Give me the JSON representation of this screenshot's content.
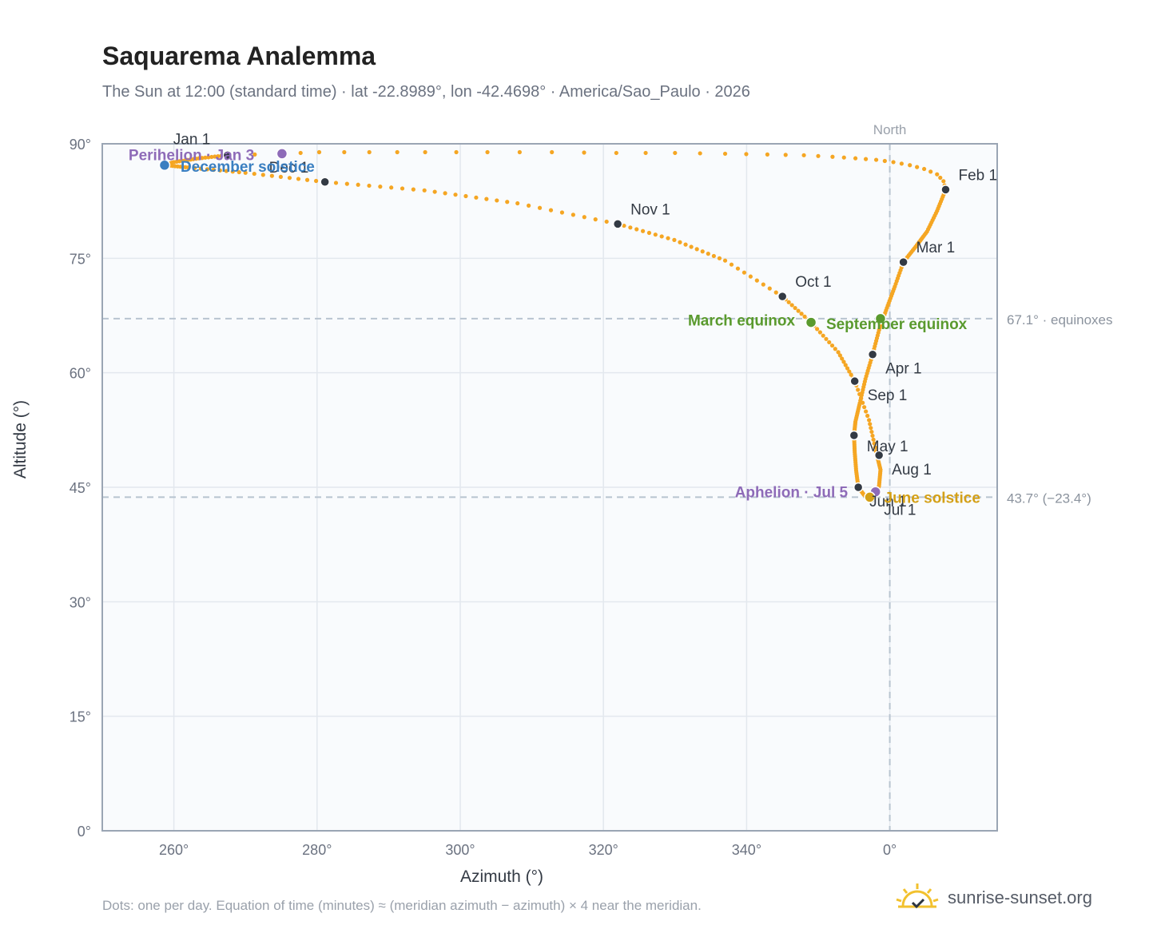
{
  "title": "Saquarema Analemma",
  "subtitle": "The Sun at 12:00 (standard time) · lat -22.8989°, lon -42.4698° · America/Sao_Paulo · 2026",
  "footer_note": "Dots: one per day. Equation of time (minutes) ≈ (meridian azimuth − azimuth) × 4 near the meridian.",
  "brand": {
    "name": "sunrise-sunset.org",
    "logo_icon": "sun-check-logo-icon"
  },
  "colors": {
    "path": "#f5a623",
    "month_dot": "#333a44",
    "perihelion": "#8e6bb8",
    "solstice_dec": "#3a7fc1",
    "equinox": "#5a9a2e",
    "solstice_jun": "#d4a017",
    "reference_line": "#b8c4d0",
    "grid": "#e3e8ee",
    "plot_bg": "#f9fbfd"
  },
  "chart_data": {
    "type": "scatter",
    "xlabel": "Azimuth (°)",
    "ylabel": "Altitude (°)",
    "x_ticks": [
      "260°",
      "280°",
      "300°",
      "320°",
      "340°",
      "0°"
    ],
    "x_tick_values": [
      260,
      280,
      300,
      320,
      340,
      360
    ],
    "y_ticks": [
      "0°",
      "15°",
      "30°",
      "45°",
      "60°",
      "75°",
      "90°"
    ],
    "y_tick_values": [
      0,
      15,
      30,
      45,
      60,
      75,
      90
    ],
    "xlim": [
      250.0,
      375.0
    ],
    "ylim": [
      0,
      90
    ],
    "grid": true,
    "north": {
      "label": "North",
      "x": 360
    },
    "reference_lines": [
      {
        "y": 67.1,
        "label": "67.1° · equinoxes"
      },
      {
        "y": 43.7,
        "label": "43.7° (−23.4°)"
      }
    ],
    "month_points": [
      {
        "label": "Jan 1",
        "x": 267.5,
        "y": 88.5
      },
      {
        "label": "Feb 1",
        "x": 367.8,
        "y": 84.0
      },
      {
        "label": "Mar 1",
        "x": 361.9,
        "y": 74.5
      },
      {
        "label": "Apr 1",
        "x": 357.6,
        "y": 62.4
      },
      {
        "label": "May 1",
        "x": 355.0,
        "y": 51.8
      },
      {
        "label": "Jun 1",
        "x": 355.6,
        "y": 45.0
      },
      {
        "label": "Jul 1",
        "x": 357.4,
        "y": 43.5
      },
      {
        "label": "Aug 1",
        "x": 358.5,
        "y": 49.2
      },
      {
        "label": "Sep 1",
        "x": 355.1,
        "y": 58.9
      },
      {
        "label": "Oct 1",
        "x": 345.0,
        "y": 70.0
      },
      {
        "label": "Nov 1",
        "x": 322.0,
        "y": 79.5
      },
      {
        "label": "Dec 1",
        "x": 281.1,
        "y": 85.0
      }
    ],
    "events": [
      {
        "label": "Perihelion · Jan 3",
        "x": 275.1,
        "y": 88.7,
        "kind": "perihelion"
      },
      {
        "label": "December solstice",
        "x": 258.7,
        "y": 87.2,
        "kind": "solstice_dec"
      },
      {
        "label": "March equinox",
        "x": 349.0,
        "y": 66.6,
        "kind": "equinox"
      },
      {
        "label": "September equinox",
        "x": 358.7,
        "y": 67.1,
        "kind": "equinox"
      },
      {
        "label": "Aphelion · Jul 5",
        "x": 358.0,
        "y": 44.4,
        "kind": "perihelion"
      },
      {
        "label": "June solstice",
        "x": 357.2,
        "y": 43.7,
        "kind": "solstice_jun"
      }
    ],
    "path_legs": [
      {
        "from": "Jan 1",
        "x": [
          267.5,
          275.1,
          280.3,
          287.3,
          295.1,
          303.8,
          312.8,
          321.8,
          330.0,
          337.0,
          342.9,
          348.0,
          352.0,
          355.2,
          358.1,
          360.5,
          362.8,
          364.8,
          366.6,
          367.5,
          367.8
        ],
        "y": [
          88.5,
          88.7,
          88.9,
          88.9,
          88.9,
          88.9,
          88.9,
          88.8,
          88.8,
          88.7,
          88.6,
          88.5,
          88.3,
          88.1,
          87.9,
          87.6,
          87.2,
          86.7,
          86.0,
          85.1,
          84.0
        ]
      },
      {
        "from": "Feb 1",
        "x": [
          367.8,
          366.6,
          365.2,
          363.6,
          361.9,
          360.7,
          359.6,
          358.5,
          357.6,
          356.6,
          355.8,
          355.2,
          355.0,
          355.1,
          355.3,
          355.6,
          356.4,
          357.0,
          357.4,
          358.0,
          358.5,
          358.7,
          358.2,
          357.1,
          355.1,
          352.8,
          349.0,
          345.0,
          337.0,
          329.9,
          322.0,
          308.0,
          295.0,
          281.1,
          270.0,
          262.0,
          258.7,
          260.0,
          263.5,
          267.5
        ],
        "y": [
          84.0,
          81.2,
          78.5,
          76.5,
          74.5,
          71.3,
          68.5,
          65.6,
          62.4,
          59.2,
          56.0,
          53.6,
          51.8,
          49.6,
          47.2,
          45.0,
          44.0,
          43.7,
          43.5,
          43.9,
          45.2,
          47.3,
          49.2,
          53.8,
          58.9,
          62.7,
          66.6,
          70.0,
          74.7,
          77.4,
          79.5,
          82.2,
          83.9,
          85.0,
          86.2,
          86.9,
          87.2,
          87.6,
          88.1,
          88.5
        ]
      }
    ]
  }
}
